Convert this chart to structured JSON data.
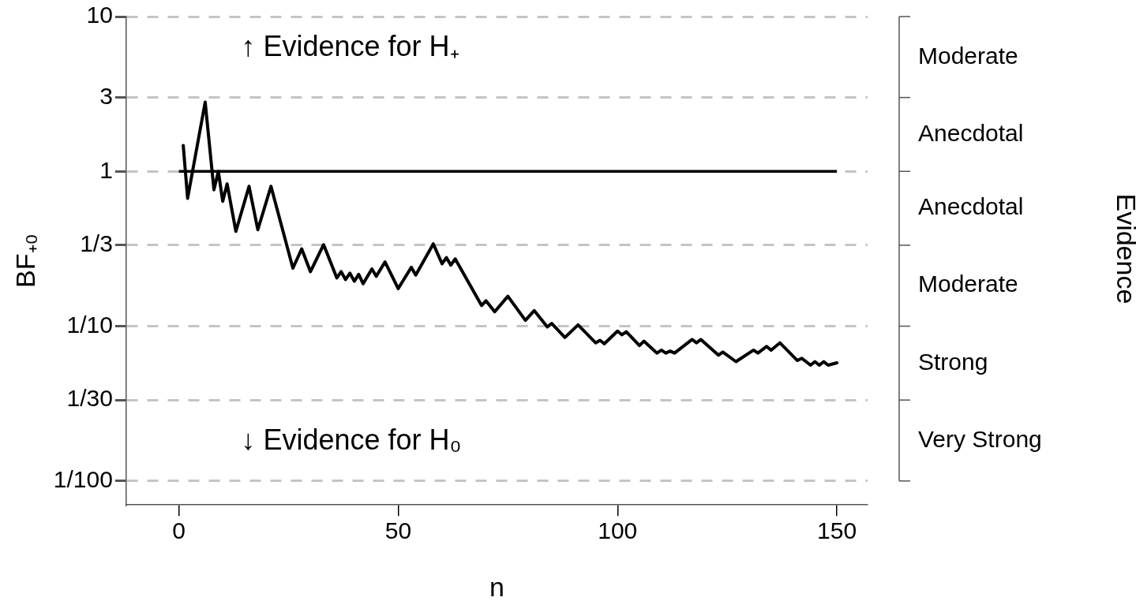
{
  "chart_data": {
    "type": "line",
    "xlabel": "n",
    "ylabel": "BF₊₀",
    "log": "y",
    "grid": "y",
    "marker": "none",
    "line_style": "solid",
    "xlim": [
      -12,
      157
    ],
    "xticks": [
      0,
      50,
      100,
      150
    ],
    "ylim": [
      0.007,
      10
    ],
    "yticks": [
      10,
      3,
      1,
      {
        "value": 0.3333,
        "label": "1/3"
      },
      {
        "value": 0.1,
        "label": "1/10"
      },
      {
        "value": 0.03333,
        "label": "1/30"
      },
      {
        "value": 0.01,
        "label": "1/100"
      }
    ],
    "ref_lines": [
      {
        "axis": "y",
        "value": 1,
        "color": "#000000",
        "line_style": "solid"
      }
    ],
    "annotations": [
      "↑ Evidence for H₊",
      "↓ Evidence for H₀",
      "Moderate",
      "Anecdotal",
      "Anecdotal",
      "Moderate",
      "Strong",
      "Very Strong",
      "Evidence"
    ],
    "series": [
      {
        "color": "#000000",
        "x": [
          1,
          2,
          6,
          8,
          9,
          10,
          11,
          13,
          16,
          18,
          21,
          26,
          28,
          30,
          33,
          36,
          37,
          38,
          39,
          40,
          41,
          42,
          44,
          45,
          47,
          50,
          53,
          54,
          58,
          60,
          61,
          62,
          63,
          69,
          70,
          72,
          75,
          79,
          81,
          84,
          85,
          88,
          91,
          95,
          96,
          97,
          100,
          101,
          102,
          105,
          106,
          109,
          110,
          111,
          112,
          113,
          117,
          118,
          119,
          123,
          124,
          127,
          131,
          132,
          134,
          135,
          137,
          141,
          142,
          144,
          145,
          146,
          147,
          148,
          150
        ],
        "values": [
          1.47,
          0.67,
          2.8,
          0.76,
          1.0,
          0.64,
          0.83,
          0.41,
          0.8,
          0.42,
          0.8,
          0.237,
          0.316,
          0.225,
          0.336,
          0.205,
          0.225,
          0.2,
          0.22,
          0.195,
          0.216,
          0.188,
          0.234,
          0.21,
          0.26,
          0.175,
          0.24,
          0.214,
          0.34,
          0.253,
          0.277,
          0.248,
          0.272,
          0.136,
          0.146,
          0.124,
          0.156,
          0.109,
          0.126,
          0.099,
          0.104,
          0.0845,
          0.102,
          0.078,
          0.081,
          0.077,
          0.093,
          0.088,
          0.092,
          0.075,
          0.08,
          0.067,
          0.07,
          0.067,
          0.069,
          0.067,
          0.082,
          0.078,
          0.082,
          0.065,
          0.068,
          0.059,
          0.07,
          0.067,
          0.074,
          0.07,
          0.078,
          0.06,
          0.062,
          0.056,
          0.059,
          0.056,
          0.059,
          0.056,
          0.058
        ]
      }
    ]
  }
}
